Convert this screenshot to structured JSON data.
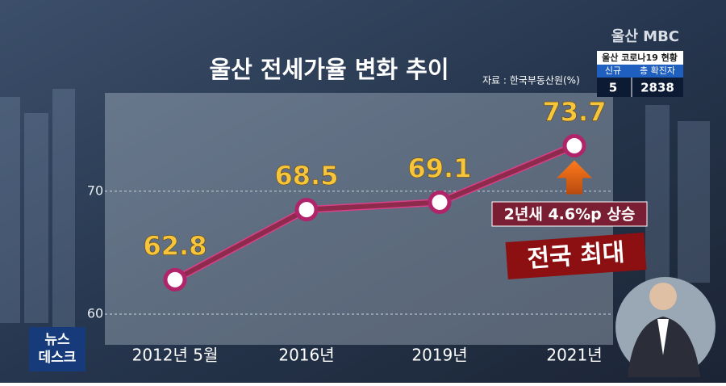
{
  "chart_data": {
    "type": "line",
    "title": "울산 전세가율 변화 추이",
    "source": "자료 : 한국부동산원(%)",
    "categories": [
      "2012년 5월",
      "2016년",
      "2019년",
      "2021년"
    ],
    "values": [
      62.8,
      68.5,
      69.1,
      73.7
    ],
    "color": "#8e2a4c",
    "ylim": [
      57.5,
      78
    ],
    "yticks": [
      60,
      70
    ],
    "grid": true,
    "annotations": [
      "2년새 4.6%p 상승",
      "전국 최대"
    ]
  },
  "broadcast": {
    "logo": "울산 MBC",
    "covid_title": "울산 코로나19 현황",
    "covid_headers": [
      "신규",
      "총 확진자"
    ],
    "covid_values": [
      "5",
      "2838"
    ],
    "program": [
      "뉴스",
      "데스크"
    ]
  }
}
